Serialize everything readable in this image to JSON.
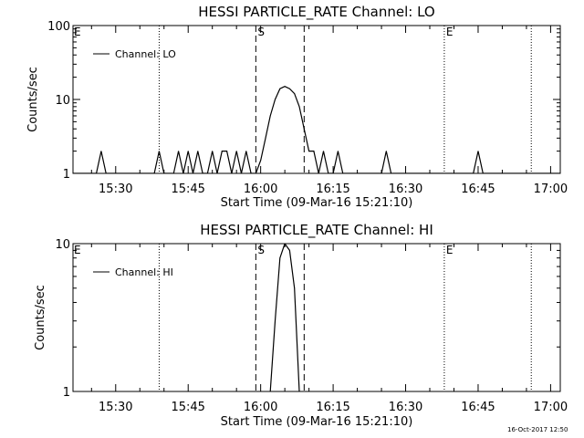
{
  "chart_data": [
    {
      "type": "line",
      "title": "HESSI PARTICLE_RATE Channel: LO",
      "xlabel": "Start Time (09-Mar-16 15:21:10)",
      "ylabel": "Counts/sec",
      "y_scale": "log",
      "ylim": [
        1,
        100
      ],
      "xlim": [
        "15:21:10",
        "17:02"
      ],
      "x_ticks": [
        "15:30",
        "15:45",
        "16:00",
        "16:15",
        "16:30",
        "16:45",
        "17:00"
      ],
      "y_ticks": [
        "1",
        "10",
        "100"
      ],
      "legend": {
        "position": "top-left",
        "entries": [
          "Channel: LO"
        ]
      },
      "series": [
        {
          "name": "Channel: LO",
          "x": [
            "15:21:10",
            "15:26",
            "15:27",
            "15:28",
            "15:38",
            "15:39",
            "15:40",
            "15:42",
            "15:43",
            "15:44",
            "15:45",
            "15:46",
            "15:47",
            "15:48",
            "15:49",
            "15:50",
            "15:51",
            "15:52",
            "15:53",
            "15:54",
            "15:55",
            "15:56",
            "15:57",
            "15:58",
            "15:59",
            "16:00",
            "16:01",
            "16:02",
            "16:03",
            "16:04",
            "16:05",
            "16:06",
            "16:07",
            "16:08",
            "16:09",
            "16:10",
            "16:11",
            "16:12",
            "16:13",
            "16:14",
            "16:15",
            "16:16",
            "16:17",
            "16:18",
            "16:25",
            "16:26",
            "16:27",
            "16:44",
            "16:45",
            "16:46",
            "17:02"
          ],
          "values": [
            1,
            1,
            2,
            1,
            1,
            2,
            1,
            1,
            2,
            1,
            2,
            1,
            2,
            1,
            1,
            2,
            1,
            2,
            2,
            1,
            2,
            1,
            2,
            1,
            1,
            1.5,
            3,
            6,
            10,
            14,
            15,
            14,
            12,
            8,
            4,
            2,
            2,
            1,
            2,
            1,
            1,
            2,
            1,
            1,
            1,
            2,
            1,
            1,
            2,
            1,
            1
          ]
        }
      ],
      "vlines": [
        {
          "time": "15:39",
          "style": "dotted",
          "label": ""
        },
        {
          "time": "15:59",
          "style": "dashed",
          "label": "S"
        },
        {
          "time": "16:09",
          "style": "dashed",
          "label": ""
        },
        {
          "time": "16:38",
          "style": "dotted",
          "label": "E"
        },
        {
          "time": "16:56",
          "style": "dotted",
          "label": ""
        }
      ],
      "corner_label": "E"
    },
    {
      "type": "line",
      "title": "HESSI PARTICLE_RATE Channel: HI",
      "xlabel": "Start Time (09-Mar-16 15:21:10)",
      "ylabel": "Counts/sec",
      "y_scale": "log",
      "ylim": [
        1,
        10
      ],
      "xlim": [
        "15:21:10",
        "17:02"
      ],
      "x_ticks": [
        "15:30",
        "15:45",
        "16:00",
        "16:15",
        "16:30",
        "16:45",
        "17:00"
      ],
      "y_ticks": [
        "1",
        "10"
      ],
      "legend": {
        "position": "top-left",
        "entries": [
          "Channel: HI"
        ]
      },
      "series": [
        {
          "name": "Channel: HI",
          "x": [
            "16:02",
            "16:03",
            "16:04",
            "16:05",
            "16:06",
            "16:07",
            "16:08"
          ],
          "values": [
            1,
            3,
            8,
            10,
            9,
            5,
            1
          ]
        }
      ],
      "vlines": [
        {
          "time": "15:39",
          "style": "dotted",
          "label": ""
        },
        {
          "time": "15:59",
          "style": "dashed",
          "label": "S"
        },
        {
          "time": "16:09",
          "style": "dashed",
          "label": ""
        },
        {
          "time": "16:38",
          "style": "dotted",
          "label": "E"
        },
        {
          "time": "16:56",
          "style": "dotted",
          "label": ""
        }
      ],
      "corner_label": "E"
    }
  ],
  "footer": {
    "timestamp": "16-Oct-2017 12:50"
  }
}
